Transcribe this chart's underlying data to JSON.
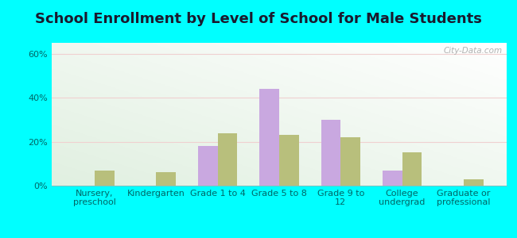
{
  "title": "School Enrollment by Level of School for Male Students",
  "categories": [
    "Nursery,\npreschool",
    "Kindergarten",
    "Grade 1 to 4",
    "Grade 5 to 8",
    "Grade 9 to\n12",
    "College\nundergrad",
    "Graduate or\nprofessional"
  ],
  "whiteside": [
    0,
    0,
    18,
    44,
    30,
    7,
    0
  ],
  "tennessee": [
    7,
    6,
    24,
    23,
    22,
    15,
    3
  ],
  "whiteside_color": "#c9a8e0",
  "tennessee_color": "#b8bf7c",
  "background_color": "#00ffff",
  "plot_bg": "#eaf2e8",
  "ylabel_ticks": [
    "0%",
    "20%",
    "40%",
    "60%"
  ],
  "yticks": [
    0,
    20,
    40,
    60
  ],
  "ylim": [
    0,
    65
  ],
  "title_fontsize": 13,
  "tick_fontsize": 8,
  "legend_fontsize": 9,
  "bar_width": 0.32,
  "watermark": "City-Data.com",
  "title_color": "#1a1a2e",
  "tick_color": "#006666",
  "grid_color": "#e0e8d8"
}
